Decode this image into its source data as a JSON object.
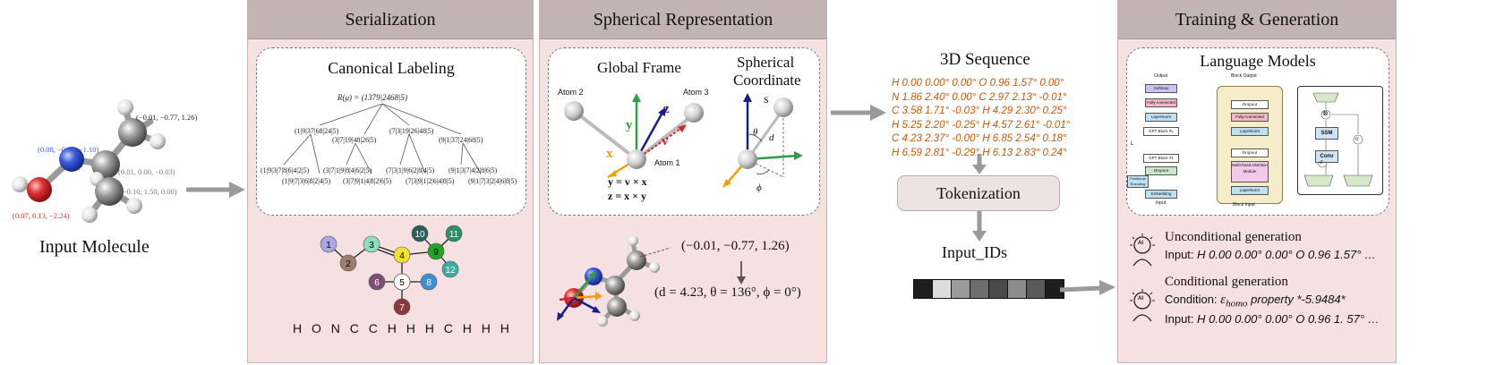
{
  "input": {
    "caption": "Input Molecule",
    "coords": {
      "c1": "(−0.01, −0.77, 1.26)",
      "n": "(0.08, −0.69, −1.10)",
      "c2": "(0.01, 0.00, −0.03)",
      "c3": "(−0.10, 1.50, 0.00)",
      "o": "(0.07, 0.13, −2.24)"
    }
  },
  "serialization": {
    "title": "Serialization",
    "box_title": "Canonical Labeling",
    "root": "R(μ) = (1379|2468|5)",
    "level1": [
      "(1|9|37|68|24|5)",
      "(7|3|19|26|48|5)",
      "(9|1|37|24|68|5)"
    ],
    "level1b": "(3|7|19|48|26|5)",
    "level2": [
      "(1|9|3|7|8|6|4|2|5)",
      "(3|7|1|9|8|4|6|2|5)",
      "(7|3|1|9|6|2|8|4|5)",
      "(9|1|3|7|4|2|8|6|5)"
    ],
    "level2b": [
      "(1|9|7|3|6|8|2|4|5)",
      "(3|7|9|1|4|8|2|6|5)",
      "(7|3|9|1|2|6|4|8|5)",
      "(9|1|7|3|2|4|6|8|5)"
    ],
    "graph_nodes": [
      "1",
      "2",
      "3",
      "4",
      "5",
      "6",
      "7",
      "8",
      "9",
      "10",
      "11",
      "12"
    ],
    "atom_sequence": "H O N C C H H H C H H H"
  },
  "spherical": {
    "title": "Spherical Representation",
    "global_frame": "Global Frame",
    "spherical_coord_line1": "Spherical",
    "spherical_coord_line2": "Coordinate",
    "atom1": "Atom 1",
    "atom2": "Atom 2",
    "atom3": "Atom 3",
    "eq1": "y = v × x",
    "eq2": "z = x × y",
    "axis_x": "x",
    "axis_y": "y",
    "axis_z": "z",
    "axis_v": "v",
    "sph_s": "s",
    "sph_theta": "θ",
    "sph_d": "d",
    "sph_phi": "ϕ",
    "coord_example": "(−0.01, −0.77, 1.26)",
    "sph_example": "(d = 4.23, θ = 136°, ϕ = 0°)"
  },
  "sequence": {
    "title": "3D Sequence",
    "lines": [
      "H 0.00 0.00° 0.00° O 0.96 1.57° 0.00°",
      "N 1.86 2.40° 0.00° C 2.97 2.13° -0.01°",
      "C 3.58 1.71° -0.03° H 4.29 2.30° 0.25°",
      "H 5.25 2.20° -0.25° H 4.57 2.61° -0.01°",
      "C 4.23 2.37° -0.00° H 6.85 2.54° 0.18°",
      "H 6.59 2.81° -0.29° H 6.13 2.83° 0.24°"
    ],
    "tokenization": "Tokenization",
    "input_ids": "Input_IDs",
    "token_shades": [
      "#1e1e1e",
      "#dcdcdc",
      "#9a9a9a",
      "#6e6e6e",
      "#4a4a4a",
      "#8c8c8c",
      "#5a5a5a",
      "#1e1e1e"
    ]
  },
  "training": {
    "title": "Training & Generation",
    "box_title": "Language Models",
    "diag": {
      "output": "Output",
      "softmax": "Softmax",
      "fully": "Fully-connected",
      "layernorm": "LayerNorm",
      "gpt_l": "GPT Block #L",
      "gpt_1": "GPT Block #1",
      "dropout": "Dropout",
      "embedding": "Embedding",
      "pos_enc": "Positional Encoding",
      "input": "Input",
      "L": "L",
      "block_output": "Block Output",
      "block_input": "Block Input",
      "mha": "Multi-head Attention Module",
      "ssm": "SSM",
      "conv": "Conv",
      "sigma": "σ",
      "times": "⊗"
    },
    "uncond_title": "Unconditional generation",
    "uncond_input_label": "Input:",
    "uncond_input": "H 0.00 0.00° 0.00° O 0.96 1.57° …",
    "cond_title": "Conditional generation",
    "cond_label": "Condition:",
    "cond_symbol": "ε",
    "cond_sub": "homo",
    "cond_prop": "property *-5.9484*",
    "cond_input_label": "Input:",
    "cond_input": "H 0.00 0.00° 0.00° O 0.96 1. 57° …",
    "ai_badge": "AI"
  },
  "colors": {
    "panel_bg": "#f6e1e2",
    "header_bg": "#c2b3b4",
    "seq_orange": "#c85a0a",
    "carbon": "#8a8a8a",
    "nitrogen": "#3b5bdb",
    "oxygen": "#e03131",
    "hydrogen": "#e0e0e0"
  }
}
